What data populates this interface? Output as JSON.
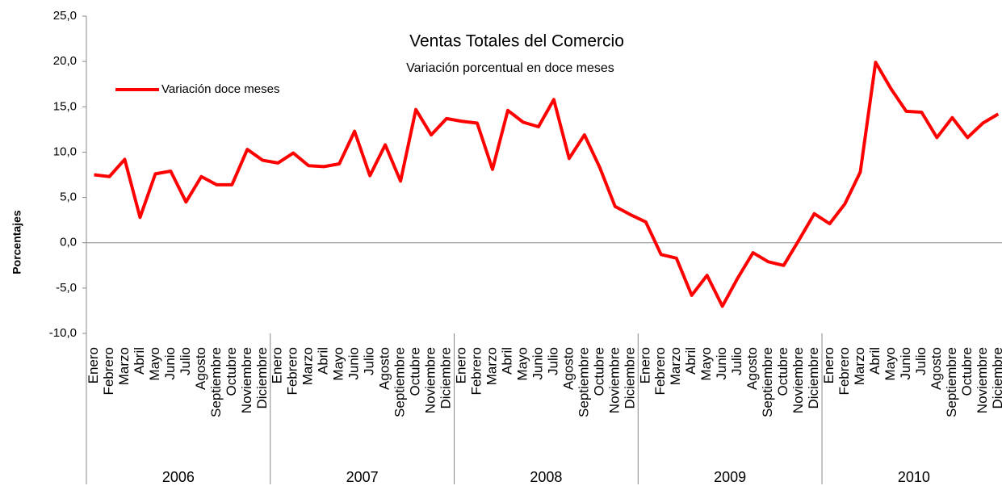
{
  "chart_data": {
    "type": "line",
    "title": "Ventas Totales del Comercio",
    "subtitle": "Variación porcentual en doce meses",
    "ylabel": "Porcentajes",
    "categories": [
      "Enero",
      "Febrero",
      "Marzo",
      "Abril",
      "Mayo",
      "Junio",
      "Julio",
      "Agosto",
      "Septiembre",
      "Octubre",
      "Noviembre",
      "Diciembre",
      "Enero",
      "Febrero",
      "Marzo",
      "Abril",
      "Mayo",
      "Junio",
      "Julio",
      "Agosto",
      "Septiembre",
      "Octubre",
      "Noviembre",
      "Diciembre",
      "Enero",
      "Febrero",
      "Marzo",
      "Abril",
      "Mayo",
      "Junio",
      "Julio",
      "Agosto",
      "Septiembre",
      "Octubre",
      "Noviembre",
      "Diciembre",
      "Enero",
      "Febrero",
      "Marzo",
      "Abril",
      "Mayo",
      "Junio",
      "Julio",
      "Agosto",
      "Septiembre",
      "Octubre",
      "Noviembre",
      "Diciembre",
      "Enero",
      "Febrero",
      "Marzo",
      "Abril",
      "Mayo",
      "Junio",
      "Julio",
      "Agosto",
      "Septiembre",
      "Octubre",
      "Noviembre",
      "Diciembre"
    ],
    "year_groups": [
      "2006",
      "2007",
      "2008",
      "2009",
      "2010"
    ],
    "series": [
      {
        "name": "Variación doce meses",
        "color": "#ff0000",
        "values": [
          7.5,
          7.3,
          9.2,
          2.8,
          7.6,
          7.9,
          4.5,
          7.3,
          6.4,
          6.4,
          10.3,
          9.1,
          8.8,
          9.9,
          8.5,
          8.4,
          8.7,
          12.3,
          7.4,
          10.8,
          6.8,
          14.7,
          11.9,
          13.7,
          13.4,
          13.2,
          8.1,
          14.6,
          13.3,
          12.8,
          15.8,
          9.3,
          11.9,
          8.3,
          4.0,
          3.1,
          2.3,
          -1.3,
          -1.7,
          -5.8,
          -3.6,
          -7.0,
          -3.9,
          -1.1,
          -2.1,
          -2.5,
          0.3,
          3.2,
          2.1,
          4.3,
          7.8,
          19.9,
          17.0,
          14.5,
          14.4,
          11.6,
          13.8,
          11.6,
          13.2,
          14.2
        ]
      }
    ],
    "ylim": [
      -10,
      25
    ],
    "yticks": [
      {
        "value": -10,
        "label": "-10,0"
      },
      {
        "value": -5,
        "label": "-5,0"
      },
      {
        "value": 0,
        "label": "0,0"
      },
      {
        "value": 5,
        "label": "5,0"
      },
      {
        "value": 10,
        "label": "10,0"
      },
      {
        "value": 15,
        "label": "15,0"
      },
      {
        "value": 20,
        "label": "20,0"
      },
      {
        "value": 25,
        "label": "25,0"
      }
    ],
    "grid": false,
    "legend": "top-left"
  }
}
